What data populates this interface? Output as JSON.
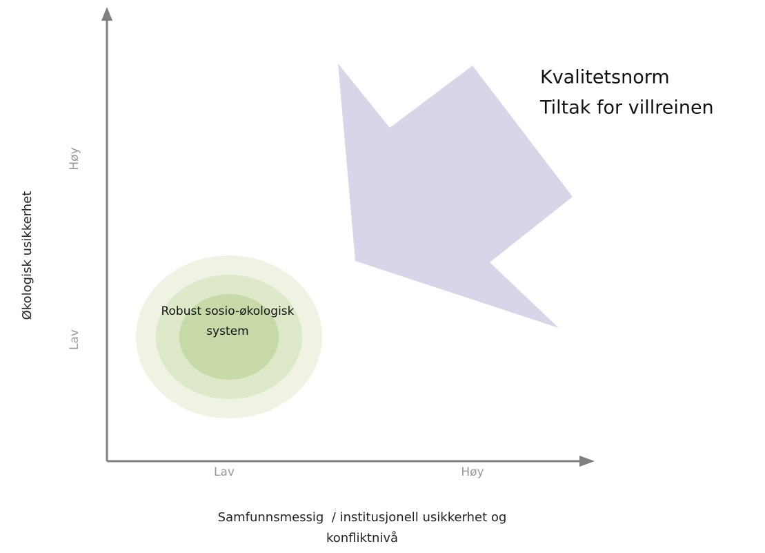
{
  "diagram": {
    "y_axis": {
      "label": "Økologisk usikkerhet",
      "high": "Høy",
      "low": "Lav"
    },
    "x_axis": {
      "low": "Lav",
      "high": "Høy",
      "label": [
        "Samfunnsmessig  / institusjonell usikkerhet og",
        "konfliktnivå"
      ]
    },
    "circle_label": [
      "Robust sosio-økologisk",
      "system"
    ],
    "arrow_label": [
      "Kvalitetsnorm",
      "Tiltak for villreinen"
    ]
  }
}
